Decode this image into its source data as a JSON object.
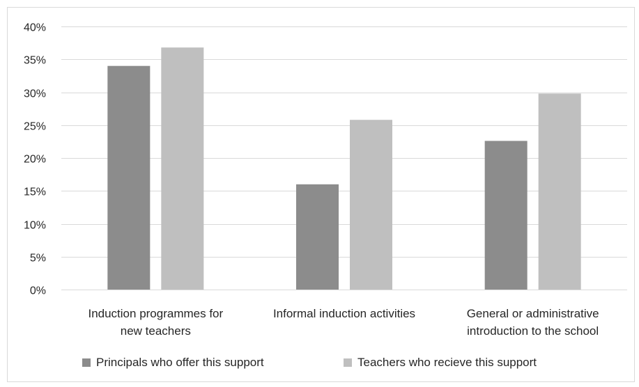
{
  "chart_data": {
    "type": "bar",
    "categories": [
      [
        "Induction programmes for",
        "new teachers"
      ],
      [
        "Informal induction activities"
      ],
      [
        "General or administrative",
        "introduction to the school"
      ]
    ],
    "series": [
      {
        "name": "Principals who offer this support",
        "values": [
          34.0,
          16.0,
          22.6
        ],
        "color": "#8c8c8c"
      },
      {
        "name": "Teachers who recieve this support",
        "values": [
          36.8,
          25.8,
          29.8
        ],
        "color": "#bfbfbf"
      }
    ],
    "yticks": [
      "0%",
      "5%",
      "10%",
      "15%",
      "20%",
      "25%",
      "30%",
      "35%",
      "40%"
    ],
    "ylim": [
      0,
      40
    ],
    "grid": true,
    "legend": "bottom"
  }
}
